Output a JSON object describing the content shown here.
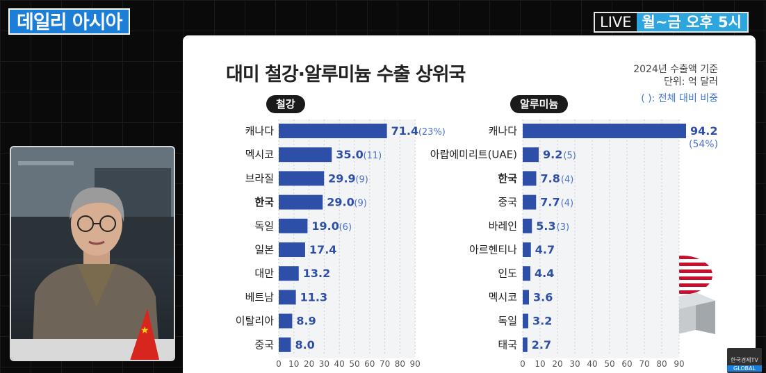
{
  "header": {
    "logo": "데일리 아시아",
    "live_label": "LIVE",
    "schedule": "월~금 오후 5시"
  },
  "card": {
    "title": "대미 철강·알루미늄 수출 상위국",
    "note_base": "2024년 수출액 기준",
    "note_unit": "단위: 억 달러",
    "note_share": "( ): 전체 대비 비중"
  },
  "channel_badge": {
    "name": "한국경제TV",
    "sub": "GLOBAL"
  },
  "chart_data": [
    {
      "type": "bar",
      "orientation": "horizontal",
      "title": "철강",
      "unit": "억 달러",
      "categories": [
        "캐나다",
        "멕시코",
        "브라질",
        "한국",
        "독일",
        "일본",
        "대만",
        "베트남",
        "이탈리아",
        "중국"
      ],
      "values": [
        71.4,
        35.0,
        29.9,
        29.0,
        19.0,
        17.4,
        13.2,
        11.3,
        8.9,
        8.0
      ],
      "value_labels": [
        "71.4",
        "35.0",
        "29.9",
        "29.0",
        "19.0",
        "17.4",
        "13.2",
        "11.3",
        "8.9",
        "8.0"
      ],
      "share_labels": [
        "(23%)",
        "(11)",
        "(9)",
        "(9)",
        "(6)",
        "",
        "",
        "",
        "",
        ""
      ],
      "highlight": "한국",
      "ticks": [
        0,
        10,
        20,
        30,
        40,
        50,
        60,
        70,
        80,
        90
      ],
      "xlim": [
        0,
        90
      ],
      "bar_color": "#2e4fa8",
      "grid": true
    },
    {
      "type": "bar",
      "orientation": "horizontal",
      "title": "알루미늄",
      "unit": "억 달러",
      "categories": [
        "캐나다",
        "아랍에미리트(UAE)",
        "한국",
        "중국",
        "바레인",
        "아르헨티나",
        "인도",
        "멕시코",
        "독일",
        "태국"
      ],
      "values": [
        94.2,
        9.2,
        7.8,
        7.7,
        5.3,
        4.7,
        4.4,
        3.6,
        3.2,
        2.7
      ],
      "value_labels": [
        "94.2",
        "9.2",
        "7.8",
        "7.7",
        "5.3",
        "4.7",
        "4.4",
        "3.6",
        "3.2",
        "2.7"
      ],
      "share_labels": [
        "(54%)",
        "(5)",
        "(4)",
        "(4)",
        "(3)",
        "",
        "",
        "",
        "",
        ""
      ],
      "highlight": "한국",
      "ticks": [
        0,
        10,
        20,
        30,
        40,
        50,
        60,
        70,
        80,
        90
      ],
      "xlim": [
        0,
        90
      ],
      "bar_color": "#2e4fa8",
      "grid": true
    }
  ]
}
